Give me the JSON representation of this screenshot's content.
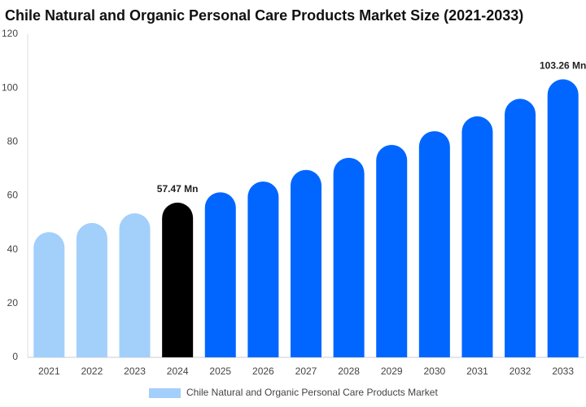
{
  "chart_data": {
    "type": "bar",
    "title": "Chile Natural and Organic Personal Care Products Market Size (2021-2033)",
    "categories": [
      "2021",
      "2022",
      "2023",
      "2024",
      "2025",
      "2026",
      "2027",
      "2028",
      "2029",
      "2030",
      "2031",
      "2032",
      "2033"
    ],
    "series": [
      {
        "name": "Chile Natural and Organic Personal Care Products Market",
        "color": "#a3cffb",
        "values": [
          46.5,
          49.9,
          53.5,
          57.47,
          61.3,
          65.3,
          69.6,
          74.1,
          78.9,
          84.0,
          89.5,
          96.0,
          103.26
        ],
        "value_labels": [
          null,
          null,
          null,
          "57.47 Mn",
          null,
          null,
          null,
          null,
          null,
          null,
          null,
          null,
          "103.26 Mn"
        ],
        "colors": [
          "#a3cffb",
          "#a3cffb",
          "#a3cffb",
          "#000000",
          "#0066ff",
          "#0066ff",
          "#0066ff",
          "#0066ff",
          "#0066ff",
          "#0066ff",
          "#0066ff",
          "#0066ff",
          "#0066ff"
        ]
      }
    ],
    "ylim": [
      0,
      120
    ],
    "yticks": [
      0,
      20,
      40,
      60,
      80,
      100,
      120
    ],
    "grid": false
  }
}
